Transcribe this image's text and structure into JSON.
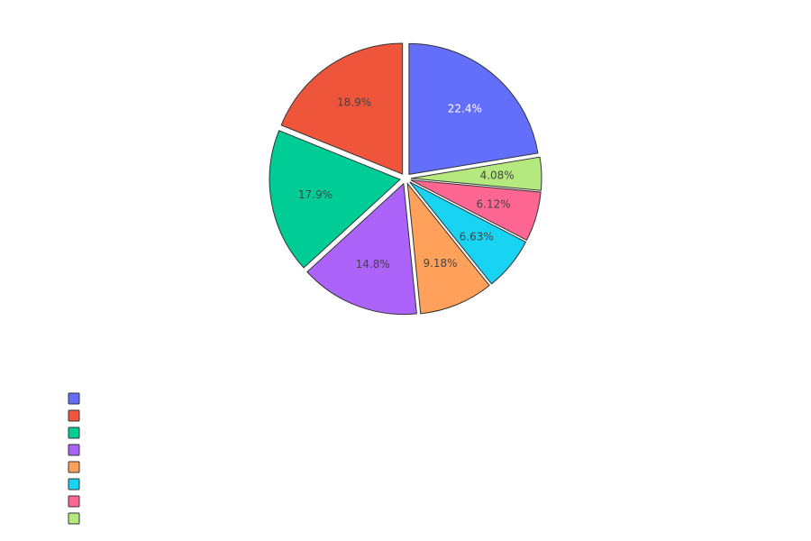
{
  "chart_data": {
    "type": "pie",
    "values": [
      22.4,
      4.08,
      6.12,
      6.63,
      9.18,
      14.8,
      17.9,
      18.9
    ],
    "labels": [
      "22.4%",
      "4.08%",
      "6.12%",
      "6.63%",
      "9.18%",
      "14.8%",
      "17.9%",
      "18.9%"
    ],
    "colors": [
      "#636efa",
      "#b6e880",
      "#ff6692",
      "#19d3f3",
      "#ffa15a",
      "#ab63fa",
      "#00cc96",
      "#ef553b"
    ],
    "label_colors": [
      "#ffffff",
      "#444444",
      "#444444",
      "#444444",
      "#444444",
      "#444444",
      "#444444",
      "#444444"
    ],
    "legend": {
      "placement": "bottom-left",
      "swatches": [
        "#636efa",
        "#ef553b",
        "#00cc96",
        "#ab63fa",
        "#ffa15a",
        "#19d3f3",
        "#ff6692",
        "#b6e880"
      ],
      "entries": [
        "",
        "",
        "",
        "",
        "",
        "",
        "",
        ""
      ]
    }
  }
}
